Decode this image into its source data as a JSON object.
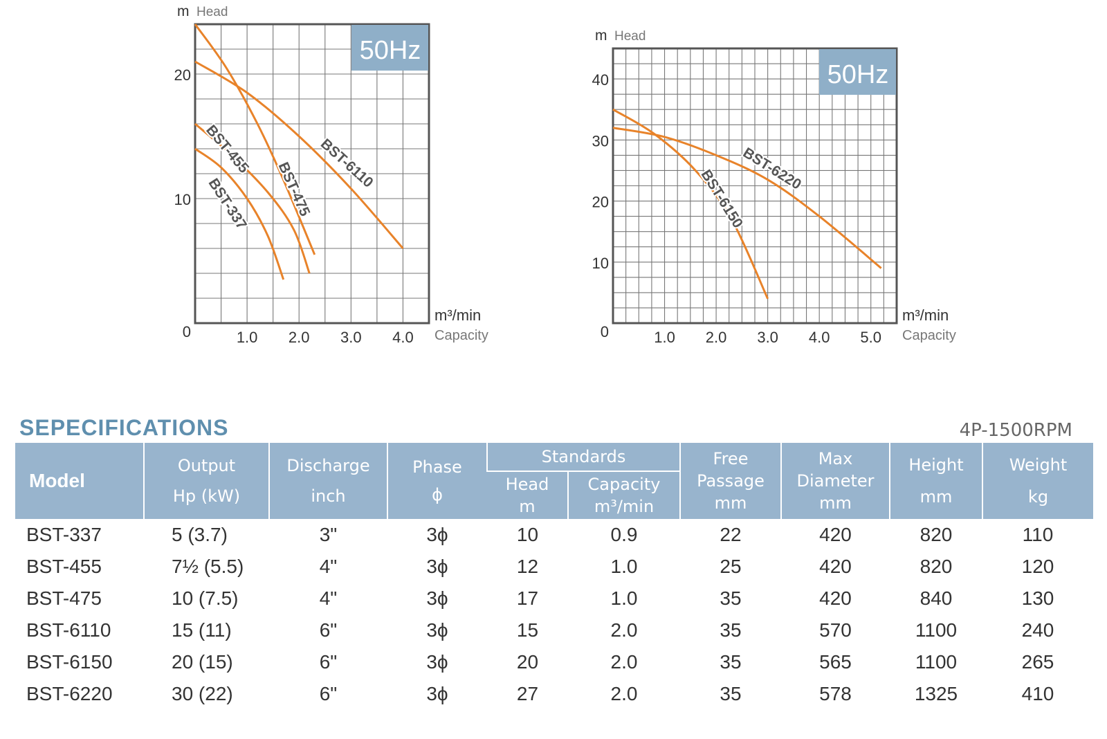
{
  "chart_data": [
    {
      "type": "line",
      "frequency_badge": "50Hz",
      "y_unit": "m",
      "ylabel": "Head",
      "x_unit": "m³/min",
      "xlabel": "Capacity",
      "xlim": [
        0,
        4.5
      ],
      "ylim": [
        0,
        24
      ],
      "x_ticks": [
        "1.0",
        "2.0",
        "3.0",
        "4.0"
      ],
      "x_tick_values": [
        1,
        2,
        3,
        4
      ],
      "y_ticks": [
        "0",
        "10",
        "20"
      ],
      "y_tick_values": [
        0,
        10,
        20
      ],
      "grid": true,
      "series": [
        {
          "name": "BST-337",
          "x": [
            0,
            0.5,
            1.0,
            1.4,
            1.7
          ],
          "y": [
            14,
            12.5,
            10,
            7,
            3.5
          ]
        },
        {
          "name": "BST-455",
          "x": [
            0,
            0.7,
            1.4,
            1.9,
            2.2
          ],
          "y": [
            16,
            13.5,
            10.5,
            7.5,
            4
          ]
        },
        {
          "name": "BST-475",
          "x": [
            0,
            0.6,
            1.2,
            1.7,
            2.3
          ],
          "y": [
            24,
            20.5,
            16,
            11.5,
            5.5
          ]
        },
        {
          "name": "BST-6110",
          "x": [
            0,
            1.0,
            2.0,
            3.0,
            4.0
          ],
          "y": [
            21,
            18.5,
            15,
            10.8,
            6
          ]
        }
      ]
    },
    {
      "type": "line",
      "frequency_badge": "50Hz",
      "y_unit": "m",
      "ylabel": "Head",
      "x_unit": "m³/min",
      "xlabel": "Capacity",
      "xlim": [
        0,
        5.5
      ],
      "ylim": [
        0,
        45
      ],
      "x_ticks": [
        "1.0",
        "2.0",
        "3.0",
        "4.0",
        "5.0"
      ],
      "x_tick_values": [
        1,
        2,
        3,
        4,
        5
      ],
      "y_ticks": [
        "0",
        "10",
        "20",
        "30",
        "40"
      ],
      "y_tick_values": [
        0,
        10,
        20,
        30,
        40
      ],
      "grid": true,
      "series": [
        {
          "name": "BST-6150",
          "x": [
            0,
            0.8,
            1.6,
            2.3,
            3.0
          ],
          "y": [
            35,
            31,
            25,
            17,
            4
          ]
        },
        {
          "name": "BST-6220",
          "x": [
            0,
            1.0,
            2.0,
            3.0,
            4.0,
            5.2
          ],
          "y": [
            32,
            30.5,
            27.5,
            23.5,
            17.5,
            9
          ]
        }
      ]
    }
  ],
  "specs": {
    "title": "SEPECIFICATIONS",
    "rpm": "4P-1500RPM",
    "headers": {
      "model": "Model",
      "output_1": "Output",
      "output_2": "Hp (kW)",
      "discharge_1": "Discharge",
      "discharge_2": "inch",
      "phase_1": "Phase",
      "phase_2": "ϕ",
      "standards": "Standards",
      "head_1": "Head",
      "head_2": "m",
      "capacity_1": "Capacity",
      "capacity_2": "m³/min",
      "free_1": "Free",
      "free_2": "Passage",
      "free_3": "mm",
      "maxdia_1": "Max",
      "maxdia_2": "Diameter",
      "maxdia_3": "mm",
      "height_1": "Height",
      "height_2": "mm",
      "weight_1": "Weight",
      "weight_2": "kg"
    },
    "rows": [
      {
        "model": "BST-337",
        "output": "5  (3.7)",
        "discharge": "3\"",
        "phase": "3ϕ",
        "head": "10",
        "capacity": "0.9",
        "free": "22",
        "maxdia": "420",
        "height": "820",
        "weight": "110"
      },
      {
        "model": "BST-455",
        "output": "7½ (5.5)",
        "discharge": "4\"",
        "phase": "3ϕ",
        "head": "12",
        "capacity": "1.0",
        "free": "25",
        "maxdia": "420",
        "height": "820",
        "weight": "120"
      },
      {
        "model": "BST-475",
        "output": "10  (7.5)",
        "discharge": "4\"",
        "phase": "3ϕ",
        "head": "17",
        "capacity": "1.0",
        "free": "35",
        "maxdia": "420",
        "height": "840",
        "weight": "130"
      },
      {
        "model": "BST-6110",
        "output": "15  (11)",
        "discharge": "6\"",
        "phase": "3ϕ",
        "head": "15",
        "capacity": "2.0",
        "free": "35",
        "maxdia": "570",
        "height": "1100",
        "weight": "240"
      },
      {
        "model": "BST-6150",
        "output": "20  (15)",
        "discharge": "6\"",
        "phase": "3ϕ",
        "head": "20",
        "capacity": "2.0",
        "free": "35",
        "maxdia": "565",
        "height": "1100",
        "weight": "265"
      },
      {
        "model": "BST-6220",
        "output": "30  (22)",
        "discharge": "6\"",
        "phase": "3ϕ",
        "head": "27",
        "capacity": "2.0",
        "free": "35",
        "maxdia": "578",
        "height": "1325",
        "weight": "410"
      }
    ]
  },
  "colors": {
    "curve": "#e8832a",
    "badge": "#8fafc8",
    "header": "#98b4cd",
    "title": "#5f8fae",
    "grid": "#777777",
    "axis": "#555555"
  }
}
